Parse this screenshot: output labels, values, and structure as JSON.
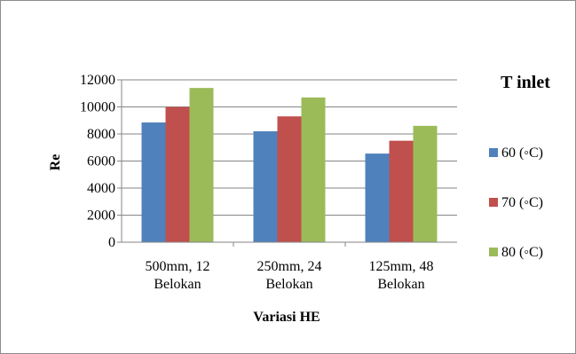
{
  "chart_data": {
    "type": "bar",
    "title": "",
    "xlabel": "Variasi HE",
    "ylabel": "Re",
    "ylim": [
      0,
      12000
    ],
    "ytick_step": 2000,
    "yticks": [
      "0",
      "2000",
      "4000",
      "6000",
      "8000",
      "10000",
      "12000"
    ],
    "grid": true,
    "legend_title": "T inlet",
    "legend_position": "right",
    "categories": [
      [
        "500mm, 12",
        "Belokan"
      ],
      [
        "250mm, 24",
        "Belokan"
      ],
      [
        "125mm, 48",
        "Belokan"
      ]
    ],
    "series": [
      {
        "name": "60 (◦C)",
        "color": "#4f81bd",
        "values": [
          8850,
          8200,
          6550
        ]
      },
      {
        "name": "70 (◦C)",
        "color": "#c0504d",
        "values": [
          10000,
          9300,
          7500
        ]
      },
      {
        "name": "80 (◦C)",
        "color": "#9bbb59",
        "values": [
          11400,
          10700,
          8600
        ]
      }
    ]
  }
}
